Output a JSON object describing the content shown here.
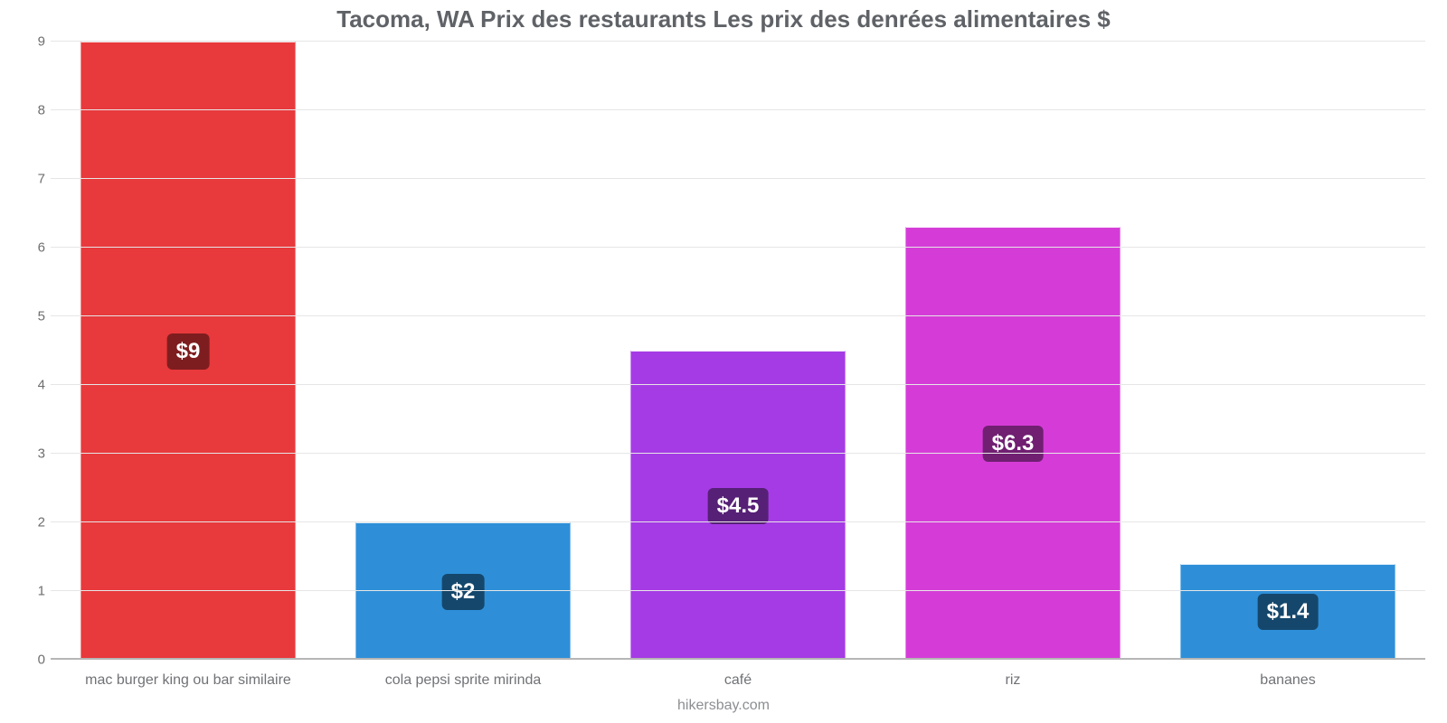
{
  "chart": {
    "type": "bar",
    "title": "Tacoma, WA Prix des restaurants Les prix des denrées alimentaires $",
    "title_fontsize": 26,
    "title_color": "#5f6266",
    "source_text": "hikersbay.com",
    "source_fontsize": 16,
    "source_color": "#8c8e92",
    "background_color": "#ffffff",
    "grid_color": "#e6e6e6",
    "baseline_color": "#b6b6b6",
    "ylim": [
      0,
      9
    ],
    "yticks": [
      0,
      1,
      2,
      3,
      4,
      5,
      6,
      7,
      8,
      9
    ],
    "ytick_color": "#6e6e6e",
    "ytick_fontsize": 15,
    "xlabel_color": "#707276",
    "xlabel_fontsize": 16,
    "bar_width_pct": 78,
    "badge_fontsize": 24,
    "badge_radius": 6,
    "categories": [
      "mac burger king ou bar similaire",
      "cola pepsi sprite mirinda",
      "café",
      "riz",
      "bananes"
    ],
    "values": [
      9,
      2,
      4.5,
      6.3,
      1.4
    ],
    "display_labels": [
      "$9",
      "$2",
      "$4.5",
      "$6.3",
      "$1.4"
    ],
    "bar_colors": [
      "#e8393c",
      "#2e8fd8",
      "#a53be5",
      "#d53cd7",
      "#2e8fd8"
    ],
    "badge_colors": [
      "#7e1d1f",
      "#15476c",
      "#562076",
      "#701f71",
      "#15476c"
    ]
  }
}
